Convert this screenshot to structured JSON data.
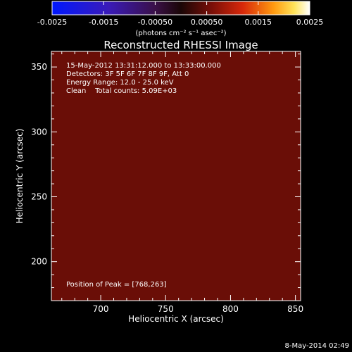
{
  "colorbar": {
    "ticks": [
      "-0.0025",
      "-0.0015",
      "-0.00050",
      "0.00050",
      "0.0015",
      "0.0025"
    ],
    "unit_label": "(photons cm⁻² s⁻¹ asec⁻²)",
    "min": -0.0025,
    "max": 0.0025
  },
  "title": "Reconstructed RHESSI Image",
  "annotations": {
    "time": "15-May-2012 13:31:12.000 to 13:33:00.000",
    "detectors": "Detectors: 3F 5F 6F 7F 8F 9F, Att 0",
    "energy": "Energy Range: 12.0 - 25.0 keV",
    "clean": "Clean    Total counts: 5.09E+03",
    "peak": "Position of Peak = [768,263]"
  },
  "axes": {
    "xlabel": "Heliocentric X (arcsec)",
    "ylabel": "Heliocentric Y (arcsec)",
    "x_ticks": [
      "700",
      "750",
      "800",
      "850"
    ],
    "y_ticks": [
      "200",
      "250",
      "300",
      "350"
    ],
    "x_range": [
      662,
      854
    ],
    "y_range": [
      170,
      362
    ]
  },
  "image": {
    "peak_x": 768,
    "peak_y": 263,
    "colormap": "blue-purple-red-yellow-white"
  },
  "footer": {
    "timestamp": "8-May-2014 02:49"
  }
}
